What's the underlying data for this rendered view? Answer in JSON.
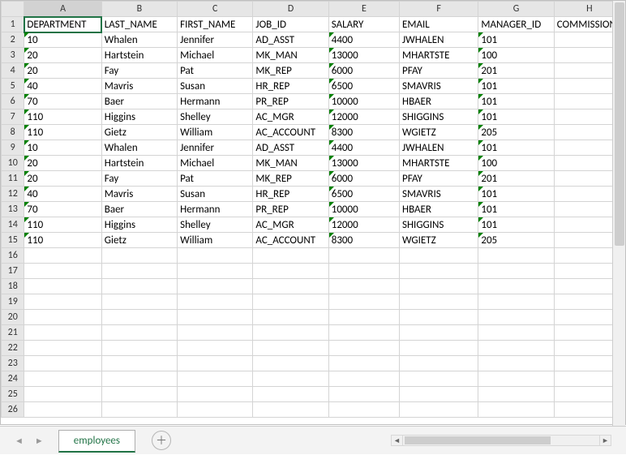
{
  "columns": [
    "A",
    "B",
    "C",
    "D",
    "E",
    "F",
    "G",
    "H"
  ],
  "headers": [
    "DEPARTMENT",
    "LAST_NAME",
    "FIRST_NAME",
    "JOB_ID",
    "SALARY",
    "EMAIL",
    "MANAGER_ID",
    "COMMISSION"
  ],
  "rows": [
    [
      "10",
      "Whalen",
      "Jennifer",
      "AD_ASST",
      "4400",
      "JWHALEN",
      "101",
      ""
    ],
    [
      "20",
      "Hartstein",
      "Michael",
      "MK_MAN",
      "13000",
      "MHARTSTE",
      "100",
      ""
    ],
    [
      "20",
      "Fay",
      "Pat",
      "MK_REP",
      "6000",
      "PFAY",
      "201",
      ""
    ],
    [
      "40",
      "Mavris",
      "Susan",
      "HR_REP",
      "6500",
      "SMAVRIS",
      "101",
      ""
    ],
    [
      "70",
      "Baer",
      "Hermann",
      "PR_REP",
      "10000",
      "HBAER",
      "101",
      ""
    ],
    [
      "110",
      "Higgins",
      "Shelley",
      "AC_MGR",
      "12000",
      "SHIGGINS",
      "101",
      ""
    ],
    [
      "110",
      "Gietz",
      "William",
      "AC_ACCOUNT",
      "8300",
      "WGIETZ",
      "205",
      ""
    ],
    [
      "10",
      "Whalen",
      "Jennifer",
      "AD_ASST",
      "4400",
      "JWHALEN",
      "101",
      ""
    ],
    [
      "20",
      "Hartstein",
      "Michael",
      "MK_MAN",
      "13000",
      "MHARTSTE",
      "100",
      ""
    ],
    [
      "20",
      "Fay",
      "Pat",
      "MK_REP",
      "6000",
      "PFAY",
      "201",
      ""
    ],
    [
      "40",
      "Mavris",
      "Susan",
      "HR_REP",
      "6500",
      "SMAVRIS",
      "101",
      ""
    ],
    [
      "70",
      "Baer",
      "Hermann",
      "PR_REP",
      "10000",
      "HBAER",
      "101",
      ""
    ],
    [
      "110",
      "Higgins",
      "Shelley",
      "AC_MGR",
      "12000",
      "SHIGGINS",
      "101",
      ""
    ],
    [
      "110",
      "Gietz",
      "William",
      "AC_ACCOUNT",
      "8300",
      "WGIETZ",
      "205",
      ""
    ]
  ],
  "flag_cols": [
    0,
    4,
    6
  ],
  "total_rows": 26,
  "active_cell": {
    "row": 1,
    "col": 0
  },
  "tab": {
    "name": "employees"
  },
  "colors": {
    "accent": "#217346",
    "header_bg": "#e6e6e6",
    "grid": "#d4d4d4",
    "flag": "#008000"
  }
}
